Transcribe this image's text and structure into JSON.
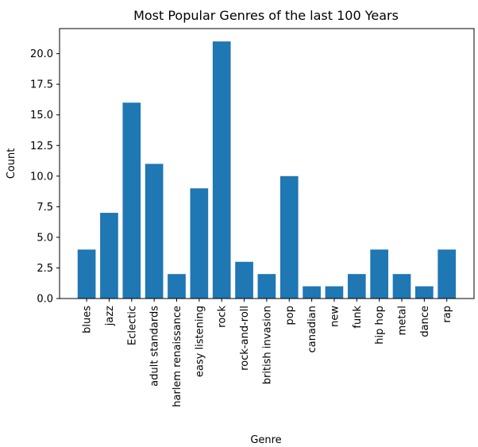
{
  "chart_data": {
    "type": "bar",
    "title": "Most Popular Genres of the last 100 Years",
    "xlabel": "Genre",
    "ylabel": "Count",
    "categories": [
      "blues",
      "jazz",
      "Eclectic",
      "adult standards",
      "harlem renaissance",
      "easy listening",
      "rock",
      "rock-and-roll",
      "british invasion",
      "pop",
      "canadian",
      "new",
      "funk",
      "hip hop",
      "metal",
      "dance",
      "rap"
    ],
    "values": [
      4,
      7,
      16,
      11,
      2,
      9,
      21,
      3,
      2,
      10,
      1,
      1,
      2,
      4,
      2,
      1,
      4
    ],
    "ylim": [
      0,
      22.05
    ],
    "yticks": [
      "0.0",
      "2.5",
      "5.0",
      "7.5",
      "10.0",
      "12.5",
      "15.0",
      "17.5",
      "20.0"
    ],
    "grid": false,
    "bar_color": "#1f77b4"
  }
}
